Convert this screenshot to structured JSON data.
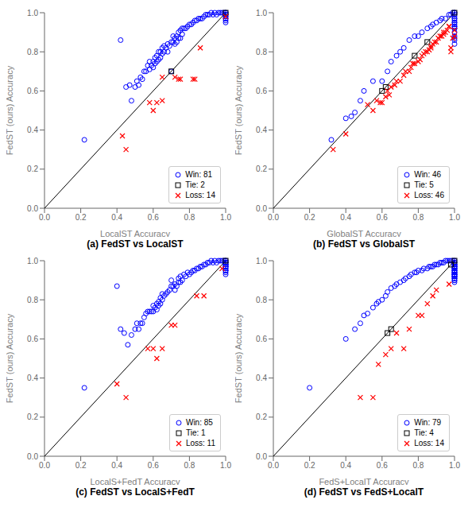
{
  "chart_data": [
    {
      "type": "scatter",
      "subtitle": "(a) FedST vs LocalST",
      "x_label": "LocalST Accuracy",
      "y_label": "FedST (ours) Accuracy",
      "xlim": [
        0,
        1
      ],
      "ylim": [
        0,
        1
      ],
      "xticks": [
        {
          "value": 0,
          "label": "0.0"
        },
        0.2,
        0.4,
        0.6,
        0.8,
        {
          "value": 1,
          "label": "1.0"
        }
      ],
      "yticks": [
        {
          "value": 0,
          "label": "0.0"
        },
        0.2,
        0.4,
        0.6,
        0.8,
        {
          "value": 1,
          "label": "1.0"
        }
      ],
      "grid": false,
      "legend": "lower right",
      "series": [
        {
          "type": "line",
          "color": "#000000",
          "line_style": "solid",
          "marker": "none",
          "x": [
            0,
            1
          ],
          "values": [
            0,
            1
          ]
        },
        {
          "name": "Win: 81",
          "color": "#0000FF",
          "marker": "circle",
          "x": [
            0.22,
            0.42,
            0.45,
            0.47,
            0.48,
            0.5,
            0.51,
            0.52,
            0.53,
            0.54,
            0.55,
            0.56,
            0.57,
            0.58,
            0.58,
            0.59,
            0.6,
            0.6,
            0.61,
            0.61,
            0.62,
            0.62,
            0.63,
            0.63,
            0.64,
            0.64,
            0.65,
            0.65,
            0.66,
            0.66,
            0.67,
            0.68,
            0.68,
            0.69,
            0.7,
            0.7,
            0.71,
            0.71,
            0.72,
            0.72,
            0.73,
            0.73,
            0.74,
            0.74,
            0.75,
            0.75,
            0.76,
            0.76,
            0.77,
            0.78,
            0.79,
            0.8,
            0.81,
            0.82,
            0.83,
            0.84,
            0.85,
            0.86,
            0.87,
            0.88,
            0.89,
            0.9,
            0.91,
            0.92,
            0.93,
            0.94,
            0.95,
            0.96,
            0.97,
            0.98,
            0.99,
            1.0,
            1.0,
            1.0,
            1.0,
            1.0,
            1.0,
            1.0,
            1.0,
            1.0,
            1.0
          ],
          "values": [
            0.35,
            0.86,
            0.62,
            0.63,
            0.55,
            0.62,
            0.65,
            0.63,
            0.67,
            0.66,
            0.7,
            0.7,
            0.73,
            0.71,
            0.75,
            0.73,
            0.72,
            0.75,
            0.74,
            0.77,
            0.75,
            0.78,
            0.76,
            0.8,
            0.77,
            0.8,
            0.79,
            0.82,
            0.8,
            0.83,
            0.82,
            0.8,
            0.84,
            0.83,
            0.7,
            0.85,
            0.85,
            0.88,
            0.84,
            0.87,
            0.85,
            0.88,
            0.87,
            0.9,
            0.87,
            0.91,
            0.89,
            0.92,
            0.92,
            0.92,
            0.93,
            0.94,
            0.94,
            0.95,
            0.96,
            0.96,
            0.97,
            0.97,
            0.97,
            0.98,
            0.99,
            0.99,
            0.99,
            1.0,
            0.99,
            1.0,
            0.99,
            1.0,
            1.0,
            1.0,
            1.0,
            0.95,
            0.96,
            0.97,
            0.97,
            0.98,
            0.98,
            0.99,
            0.99,
            1.0,
            1.0
          ]
        },
        {
          "name": "Tie: 2",
          "color": "#000000",
          "marker": "square",
          "x": [
            0.7,
            1.0
          ],
          "values": [
            0.7,
            1.0
          ]
        },
        {
          "name": "Loss: 14",
          "color": "#FF0000",
          "marker": "x",
          "x": [
            0.43,
            0.45,
            0.58,
            0.6,
            0.62,
            0.65,
            0.65,
            0.72,
            0.74,
            0.75,
            0.82,
            0.83,
            0.86,
            1.0
          ],
          "values": [
            0.37,
            0.3,
            0.54,
            0.5,
            0.54,
            0.55,
            0.67,
            0.67,
            0.66,
            0.66,
            0.66,
            0.66,
            0.82,
            0.98
          ]
        }
      ]
    },
    {
      "type": "scatter",
      "subtitle": "(b) FedST vs GlobalST",
      "x_label": "GlobalST Accuracy",
      "y_label": "FedST (ours) Accuracy",
      "xlim": [
        0,
        1
      ],
      "ylim": [
        0,
        1
      ],
      "xticks": [
        {
          "value": 0,
          "label": "0.0"
        },
        0.2,
        0.4,
        0.6,
        0.8,
        {
          "value": 1,
          "label": "1.0"
        }
      ],
      "yticks": [
        {
          "value": 0,
          "label": "0.0"
        },
        0.2,
        0.4,
        0.6,
        0.8,
        {
          "value": 1,
          "label": "1.0"
        }
      ],
      "grid": false,
      "legend": "lower right",
      "series": [
        {
          "type": "line",
          "color": "#000000",
          "line_style": "solid",
          "marker": "none",
          "x": [
            0,
            1
          ],
          "values": [
            0,
            1
          ]
        },
        {
          "name": "Win: 46",
          "color": "#0000FF",
          "marker": "circle",
          "x": [
            0.32,
            0.4,
            0.43,
            0.45,
            0.48,
            0.5,
            0.55,
            0.6,
            0.63,
            0.65,
            0.68,
            0.7,
            0.72,
            0.75,
            0.78,
            0.8,
            0.82,
            0.85,
            0.87,
            0.88,
            0.9,
            0.92,
            0.93,
            0.95,
            0.97,
            0.98,
            0.99,
            1.0,
            1.0,
            1.0,
            1.0,
            1.0,
            1.0,
            1.0,
            1.0,
            1.0,
            1.0,
            1.0,
            1.0,
            1.0,
            1.0,
            1.0,
            1.0,
            1.0,
            1.0,
            1.0
          ],
          "values": [
            0.35,
            0.46,
            0.47,
            0.49,
            0.55,
            0.6,
            0.65,
            0.65,
            0.7,
            0.75,
            0.78,
            0.8,
            0.82,
            0.86,
            0.88,
            0.88,
            0.9,
            0.92,
            0.93,
            0.94,
            0.95,
            0.96,
            0.97,
            0.97,
            0.99,
            0.99,
            1.0,
            0.84,
            0.86,
            0.87,
            0.88,
            0.9,
            0.92,
            0.93,
            0.94,
            0.95,
            0.96,
            0.97,
            0.98,
            0.99,
            1.0,
            0.92,
            0.93,
            0.95,
            0.97,
            1.0
          ]
        },
        {
          "name": "Tie: 5",
          "color": "#000000",
          "marker": "square",
          "x": [
            0.6,
            0.62,
            0.78,
            0.85,
            1.0
          ],
          "values": [
            0.6,
            0.62,
            0.78,
            0.85,
            1.0
          ]
        },
        {
          "name": "Loss: 46",
          "color": "#FF0000",
          "marker": "x",
          "x": [
            0.33,
            0.4,
            0.52,
            0.55,
            0.57,
            0.59,
            0.6,
            0.62,
            0.63,
            0.64,
            0.65,
            0.67,
            0.68,
            0.7,
            0.72,
            0.73,
            0.75,
            0.76,
            0.77,
            0.78,
            0.8,
            0.81,
            0.82,
            0.83,
            0.84,
            0.85,
            0.86,
            0.87,
            0.87,
            0.88,
            0.89,
            0.9,
            0.91,
            0.92,
            0.93,
            0.94,
            0.94,
            0.95,
            0.96,
            0.97,
            0.97,
            0.98,
            0.98,
            0.99,
            1.0,
            1.0
          ],
          "values": [
            0.3,
            0.38,
            0.53,
            0.5,
            0.55,
            0.54,
            0.54,
            0.57,
            0.6,
            0.58,
            0.62,
            0.63,
            0.65,
            0.65,
            0.68,
            0.7,
            0.7,
            0.72,
            0.74,
            0.74,
            0.75,
            0.76,
            0.78,
            0.79,
            0.8,
            0.8,
            0.81,
            0.83,
            0.82,
            0.84,
            0.85,
            0.85,
            0.87,
            0.88,
            0.88,
            0.89,
            0.9,
            0.9,
            0.91,
            0.93,
            0.93,
            0.8,
            0.82,
            0.87,
            0.88,
            0.91
          ]
        }
      ]
    },
    {
      "type": "scatter",
      "subtitle": "(c) FedST vs LocalS+FedT",
      "x_label": "LocalS+FedT Accuracy",
      "y_label": "FedST (ours) Accuracy",
      "xlim": [
        0,
        1
      ],
      "ylim": [
        0,
        1
      ],
      "xticks": [
        {
          "value": 0,
          "label": "0.0"
        },
        0.2,
        0.4,
        0.6,
        0.8,
        {
          "value": 1,
          "label": "1.0"
        }
      ],
      "yticks": [
        {
          "value": 0,
          "label": "0.0"
        },
        0.2,
        0.4,
        0.6,
        0.8,
        {
          "value": 1,
          "label": "1.0"
        }
      ],
      "grid": false,
      "legend": "lower right",
      "series": [
        {
          "type": "line",
          "color": "#000000",
          "line_style": "solid",
          "marker": "none",
          "x": [
            0,
            1
          ],
          "values": [
            0,
            1
          ]
        },
        {
          "name": "Win: 85",
          "color": "#0000FF",
          "marker": "circle",
          "x": [
            0.22,
            0.4,
            0.42,
            0.44,
            0.46,
            0.48,
            0.5,
            0.51,
            0.52,
            0.53,
            0.54,
            0.55,
            0.56,
            0.57,
            0.58,
            0.59,
            0.6,
            0.6,
            0.61,
            0.62,
            0.62,
            0.63,
            0.63,
            0.64,
            0.64,
            0.65,
            0.65,
            0.66,
            0.67,
            0.68,
            0.69,
            0.7,
            0.7,
            0.71,
            0.72,
            0.72,
            0.73,
            0.74,
            0.74,
            0.75,
            0.75,
            0.76,
            0.77,
            0.78,
            0.79,
            0.8,
            0.81,
            0.82,
            0.83,
            0.84,
            0.85,
            0.86,
            0.87,
            0.88,
            0.89,
            0.9,
            0.91,
            0.92,
            0.93,
            0.94,
            0.95,
            0.96,
            0.97,
            0.98,
            0.99,
            1.0,
            1.0,
            1.0,
            1.0,
            1.0,
            1.0,
            1.0,
            1.0,
            1.0,
            1.0,
            1.0,
            1.0,
            1.0,
            1.0,
            1.0,
            1.0,
            1.0,
            1.0,
            1.0,
            1.0
          ],
          "values": [
            0.35,
            0.87,
            0.65,
            0.63,
            0.57,
            0.62,
            0.65,
            0.68,
            0.65,
            0.68,
            0.68,
            0.71,
            0.73,
            0.74,
            0.74,
            0.74,
            0.74,
            0.77,
            0.76,
            0.75,
            0.78,
            0.77,
            0.79,
            0.78,
            0.81,
            0.8,
            0.83,
            0.82,
            0.83,
            0.84,
            0.85,
            0.87,
            0.9,
            0.87,
            0.85,
            0.88,
            0.87,
            0.89,
            0.91,
            0.89,
            0.92,
            0.9,
            0.93,
            0.92,
            0.94,
            0.93,
            0.94,
            0.95,
            0.95,
            0.96,
            0.96,
            0.97,
            0.97,
            0.98,
            0.98,
            0.99,
            0.99,
            1.0,
            0.99,
            1.0,
            0.99,
            1.0,
            1.0,
            1.0,
            1.0,
            0.95,
            0.96,
            0.97,
            0.97,
            0.98,
            0.98,
            0.99,
            0.99,
            1.0,
            0.93,
            0.94,
            0.95,
            0.95,
            0.96,
            0.97,
            0.97,
            0.98,
            0.98,
            0.99,
            1.0
          ]
        },
        {
          "name": "Tie: 1",
          "color": "#000000",
          "marker": "square",
          "x": [
            1.0
          ],
          "values": [
            1.0
          ]
        },
        {
          "name": "Loss: 11",
          "color": "#FF0000",
          "marker": "x",
          "x": [
            0.4,
            0.45,
            0.57,
            0.6,
            0.62,
            0.65,
            0.7,
            0.72,
            0.84,
            0.88,
            0.98
          ],
          "values": [
            0.37,
            0.3,
            0.55,
            0.55,
            0.5,
            0.55,
            0.67,
            0.67,
            0.82,
            0.82,
            0.96
          ]
        }
      ]
    },
    {
      "type": "scatter",
      "subtitle": "(d) FedST vs FedS+LocalT",
      "x_label": "FedS+LocalT Accuracy",
      "y_label": "FedST (ours) Accuracy",
      "xlim": [
        0,
        1
      ],
      "ylim": [
        0,
        1
      ],
      "xticks": [
        {
          "value": 0,
          "label": "0.0"
        },
        0.2,
        0.4,
        0.6,
        0.8,
        {
          "value": 1,
          "label": "1.0"
        }
      ],
      "yticks": [
        {
          "value": 0,
          "label": "0.0"
        },
        0.2,
        0.4,
        0.6,
        0.8,
        {
          "value": 1,
          "label": "1.0"
        }
      ],
      "grid": false,
      "legend": "lower right",
      "series": [
        {
          "type": "line",
          "color": "#000000",
          "line_style": "solid",
          "marker": "none",
          "x": [
            0,
            1
          ],
          "values": [
            0,
            1
          ]
        },
        {
          "name": "Win: 79",
          "color": "#0000FF",
          "marker": "circle",
          "x": [
            0.2,
            0.4,
            0.45,
            0.48,
            0.5,
            0.52,
            0.55,
            0.57,
            0.58,
            0.6,
            0.62,
            0.63,
            0.65,
            0.67,
            0.68,
            0.7,
            0.72,
            0.73,
            0.75,
            0.76,
            0.78,
            0.79,
            0.8,
            0.82,
            0.83,
            0.85,
            0.86,
            0.87,
            0.88,
            0.89,
            0.9,
            0.91,
            0.92,
            0.93,
            0.94,
            0.95,
            0.96,
            0.97,
            0.98,
            0.99,
            1.0,
            1.0,
            1.0,
            1.0,
            1.0,
            1.0,
            1.0,
            1.0,
            1.0,
            1.0,
            1.0,
            1.0,
            1.0,
            1.0,
            1.0,
            1.0,
            1.0,
            1.0,
            1.0,
            1.0,
            1.0,
            1.0,
            1.0,
            1.0,
            1.0,
            1.0,
            1.0,
            1.0,
            1.0,
            1.0,
            1.0,
            1.0,
            1.0,
            1.0,
            1.0,
            1.0,
            1.0,
            1.0,
            1.0
          ],
          "values": [
            0.35,
            0.6,
            0.65,
            0.68,
            0.72,
            0.73,
            0.76,
            0.78,
            0.79,
            0.8,
            0.82,
            0.84,
            0.86,
            0.87,
            0.88,
            0.89,
            0.9,
            0.91,
            0.92,
            0.93,
            0.94,
            0.94,
            0.95,
            0.95,
            0.96,
            0.96,
            0.97,
            0.97,
            0.97,
            0.98,
            0.98,
            0.98,
            0.99,
            0.99,
            0.99,
            1.0,
            1.0,
            1.0,
            1.0,
            1.0,
            0.93,
            0.94,
            0.94,
            0.95,
            0.95,
            0.96,
            0.96,
            0.97,
            0.97,
            0.97,
            0.98,
            0.98,
            0.99,
            0.99,
            1.0,
            0.91,
            0.92,
            0.92,
            0.93,
            0.93,
            0.94,
            0.94,
            0.95,
            0.95,
            0.96,
            0.96,
            0.97,
            0.97,
            0.98,
            0.98,
            0.89,
            0.9,
            0.9,
            0.91,
            0.91,
            0.92,
            0.92,
            0.93,
            0.93
          ]
        },
        {
          "name": "Tie: 4",
          "color": "#000000",
          "marker": "square",
          "x": [
            0.63,
            0.65,
            0.98,
            1.0
          ],
          "values": [
            0.63,
            0.65,
            0.98,
            1.0
          ]
        },
        {
          "name": "Loss: 14",
          "color": "#FF0000",
          "marker": "x",
          "x": [
            0.48,
            0.55,
            0.58,
            0.62,
            0.65,
            0.68,
            0.72,
            0.75,
            0.8,
            0.82,
            0.85,
            0.88,
            0.9,
            0.97
          ],
          "values": [
            0.3,
            0.3,
            0.47,
            0.52,
            0.55,
            0.63,
            0.55,
            0.65,
            0.72,
            0.72,
            0.78,
            0.82,
            0.85,
            0.88
          ]
        }
      ]
    }
  ]
}
